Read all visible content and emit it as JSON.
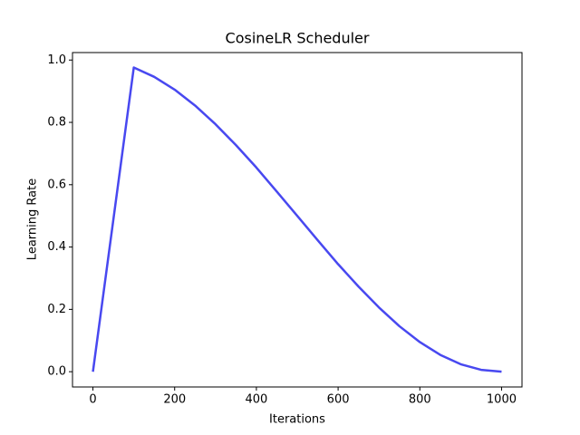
{
  "chart_data": {
    "type": "line",
    "title": "CosineLR Scheduler",
    "x_label": "Iterations",
    "y_label": "Learning Rate",
    "x": [
      0,
      100,
      150,
      200,
      250,
      300,
      350,
      400,
      450,
      500,
      550,
      600,
      650,
      700,
      750,
      800,
      850,
      900,
      950,
      1000
    ],
    "series": [
      {
        "color": "#4848f0",
        "values": [
          0,
          0.976,
          0.946,
          0.905,
          0.854,
          0.794,
          0.727,
          0.655,
          0.578,
          0.5,
          0.422,
          0.345,
          0.273,
          0.206,
          0.146,
          0.095,
          0.054,
          0.024,
          0.006,
          0
        ]
      }
    ],
    "xlim": [
      -50,
      1050
    ],
    "xticks": [
      0,
      200,
      400,
      600,
      800,
      1000
    ],
    "ylim": [
      -0.049,
      1.024
    ],
    "yticks": [
      {
        "value": 0,
        "label": "0.0"
      },
      0.2,
      0.4,
      0.6,
      0.8,
      {
        "value": 1,
        "label": "1.0"
      }
    ]
  }
}
